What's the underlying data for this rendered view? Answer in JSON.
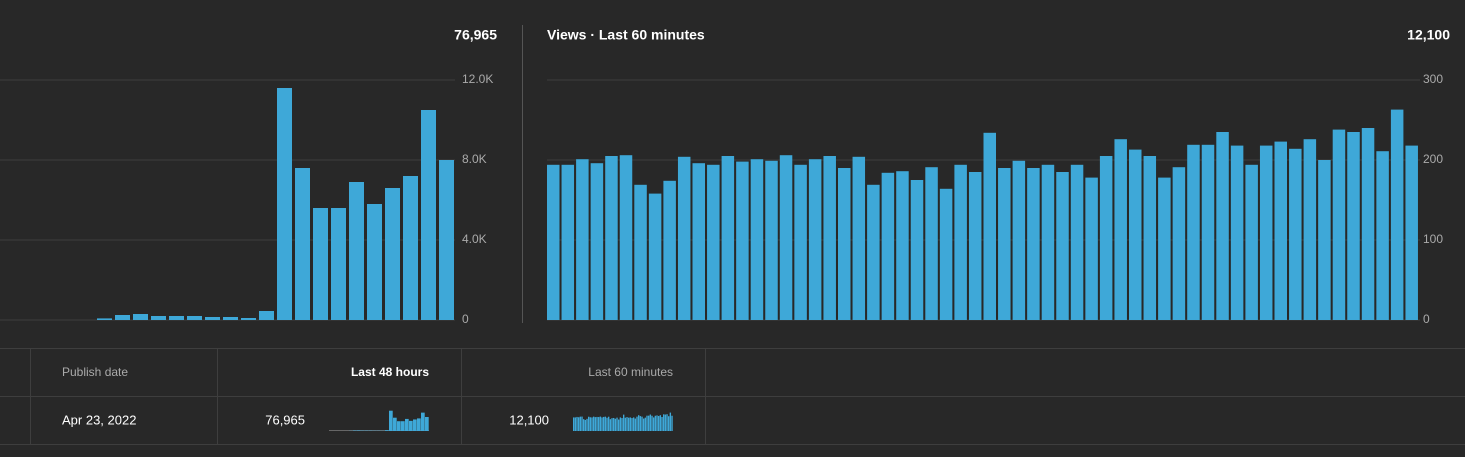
{
  "chart_data": [
    {
      "type": "bar",
      "total": "76,965",
      "color": "#3ea8d8",
      "values": [
        0,
        0,
        0,
        0,
        0,
        80,
        250,
        300,
        200,
        200,
        200,
        150,
        150,
        100,
        450,
        11600,
        7600,
        5600,
        5600,
        6900,
        5800,
        6600,
        7200,
        10500,
        8000
      ],
      "ylim": [
        0,
        12000
      ],
      "yticks": [
        0,
        {
          "value": 4000,
          "label": "4.0K"
        },
        {
          "value": 8000,
          "label": "8.0K"
        },
        {
          "value": 12000,
          "label": "12.0K"
        }
      ],
      "grid": true
    },
    {
      "type": "bar",
      "title": "Views · Last 60 minutes",
      "total": "12,100",
      "color": "#3ea8d8",
      "values": [
        194,
        194,
        201,
        196,
        205,
        206,
        169,
        158,
        174,
        204,
        196,
        194,
        205,
        198,
        201,
        199,
        206,
        194,
        201,
        205,
        190,
        204,
        169,
        184,
        186,
        175,
        191,
        164,
        194,
        185,
        234,
        190,
        199,
        190,
        194,
        185,
        194,
        178,
        205,
        226,
        213,
        205,
        178,
        191,
        219,
        219,
        235,
        218,
        194,
        218,
        223,
        214,
        226,
        200,
        238,
        235,
        240,
        211,
        263,
        218
      ],
      "ylim": [
        0,
        300
      ],
      "yticks": [
        0,
        100,
        200,
        300
      ],
      "grid": true
    }
  ],
  "table": {
    "header": [
      "Publish date",
      "Last 48 hours",
      "Last 60 minutes"
    ],
    "rows": [
      [
        "Apr 23, 2022"
      ]
    ]
  }
}
